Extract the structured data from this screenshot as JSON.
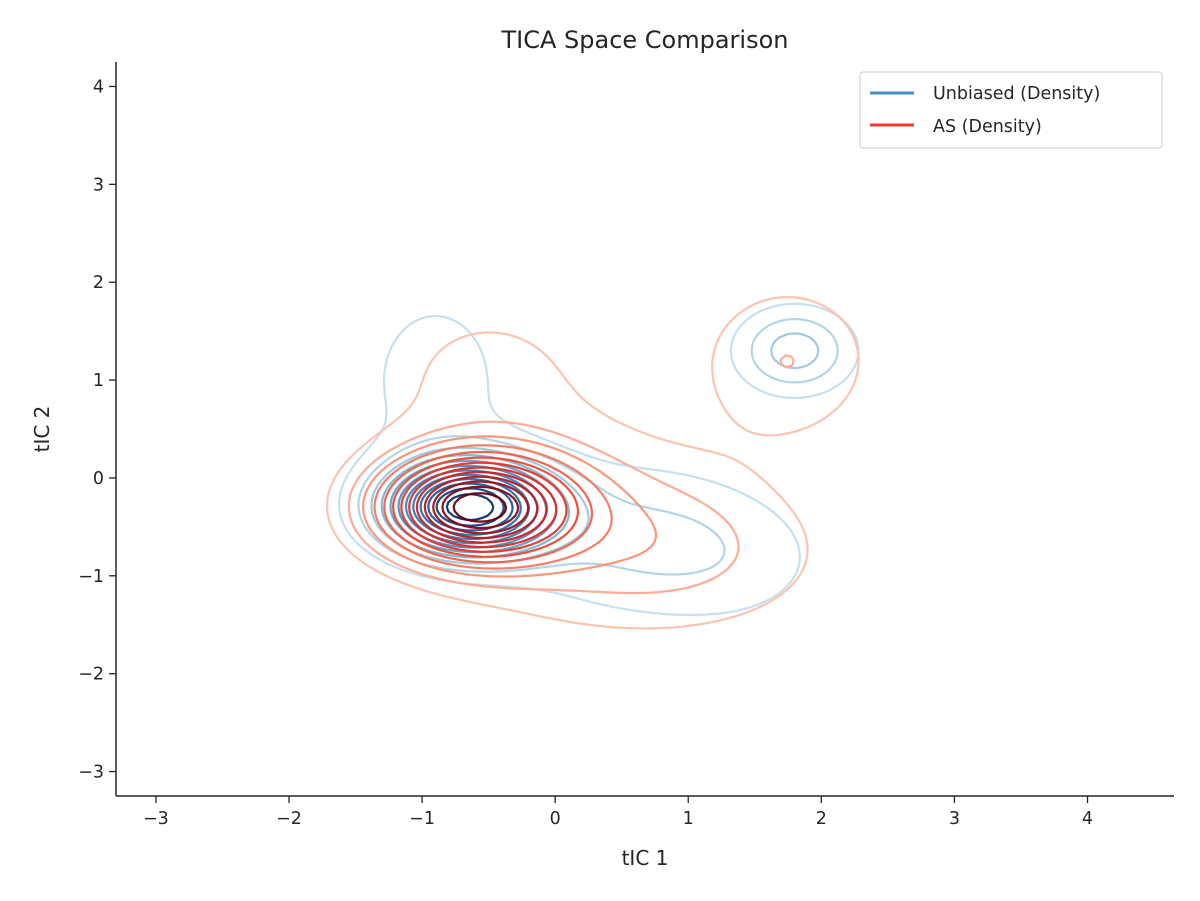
{
  "chart_data": {
    "type": "contour",
    "title": "TICA Space Comparison",
    "xlabel": "tIC 1",
    "ylabel": "tIC 2",
    "xlim": [
      -3.3,
      4.65
    ],
    "ylim": [
      -3.25,
      4.25
    ],
    "xticks": [
      -3,
      -2,
      -1,
      0,
      1,
      2,
      3,
      4
    ],
    "yticks": [
      -3,
      -2,
      -1,
      0,
      1,
      2,
      3,
      4
    ],
    "xtick_labels": [
      "−3",
      "−2",
      "−1",
      "0",
      "1",
      "2",
      "3",
      "4"
    ],
    "ytick_labels": [
      "−3",
      "−2",
      "−1",
      "0",
      "1",
      "2",
      "3",
      "4"
    ],
    "grid": false,
    "legend_position": "top-right",
    "series": [
      {
        "name": "Unbiased (Density)",
        "legend_color": "#4292c6",
        "colormap": "Blues",
        "levels": 12,
        "components": [
          {
            "weight": 0.46,
            "mean": [
              -0.65,
              -0.3
            ],
            "sd": [
              0.42,
              0.32
            ]
          },
          {
            "weight": 0.22,
            "mean": [
              0.55,
              -0.6
            ],
            "sd": [
              0.7,
              0.55
            ]
          },
          {
            "weight": 0.16,
            "mean": [
              -0.9,
              1.0
            ],
            "sd": [
              0.5,
              0.85
            ]
          },
          {
            "weight": 0.09,
            "mean": [
              1.8,
              1.3
            ],
            "sd": [
              0.3,
              0.3
            ]
          },
          {
            "weight": 0.07,
            "mean": [
              1.4,
              -0.9
            ],
            "sd": [
              0.55,
              0.5
            ]
          }
        ]
      },
      {
        "name": "AS (Density)",
        "legend_color": "#ef3b2c",
        "colormap": "Reds",
        "levels": 13,
        "components": [
          {
            "weight": 0.44,
            "mean": [
              -0.6,
              -0.3
            ],
            "sd": [
              0.48,
              0.36
            ]
          },
          {
            "weight": 0.24,
            "mean": [
              0.3,
              -0.55
            ],
            "sd": [
              0.8,
              0.65
            ]
          },
          {
            "weight": 0.13,
            "mean": [
              -0.5,
              1.0
            ],
            "sd": [
              0.7,
              0.75
            ]
          },
          {
            "weight": 0.1,
            "mean": [
              1.75,
              1.2
            ],
            "sd": [
              0.45,
              0.55
            ]
          },
          {
            "weight": 0.09,
            "mean": [
              1.2,
              -0.8
            ],
            "sd": [
              0.7,
              0.55
            ]
          }
        ]
      }
    ]
  }
}
